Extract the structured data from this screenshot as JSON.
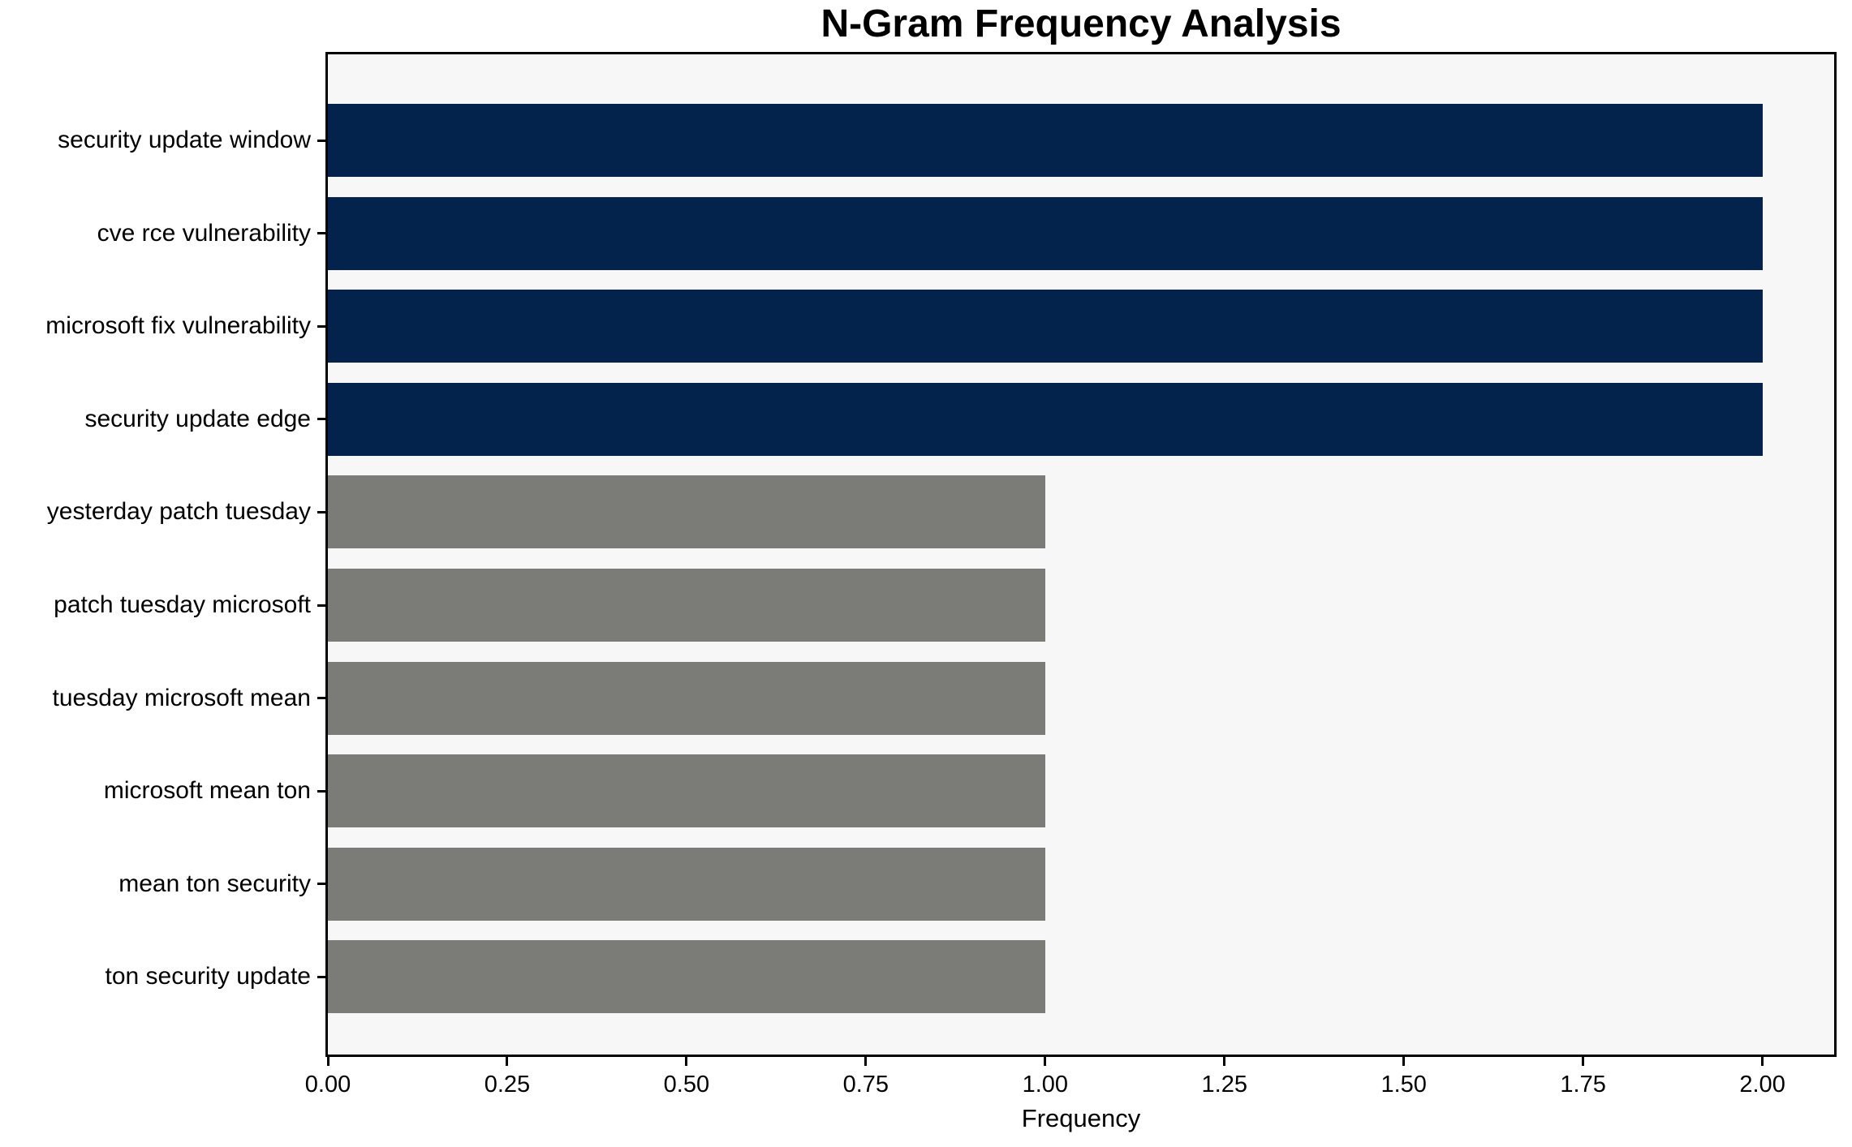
{
  "chart_data": {
    "type": "bar",
    "orientation": "horizontal",
    "title": "N-Gram Frequency Analysis",
    "xlabel": "Frequency",
    "ylabel": "",
    "categories": [
      "security update window",
      "cve rce vulnerability",
      "microsoft fix vulnerability",
      "security update edge",
      "yesterday patch tuesday",
      "patch tuesday microsoft",
      "tuesday microsoft mean",
      "microsoft mean ton",
      "mean ton security",
      "ton security update"
    ],
    "values": [
      2,
      2,
      2,
      2,
      1,
      1,
      1,
      1,
      1,
      1
    ],
    "xlim": [
      0,
      2.1
    ],
    "xtick_labels": [
      "0.00",
      "0.25",
      "0.50",
      "0.75",
      "1.00",
      "1.25",
      "1.50",
      "1.75",
      "2.00"
    ],
    "xtick_values": [
      0,
      0.25,
      0.5,
      0.75,
      1.0,
      1.25,
      1.5,
      1.75,
      2.0
    ],
    "grid": false,
    "legend": "none",
    "colors": {
      "bar_high": "#03234d",
      "bar_low": "#7b7b78",
      "plot_bg": "#f7f7f7",
      "fig_bg": "#ffffff",
      "spine": "#000000",
      "text": "#000000"
    }
  }
}
